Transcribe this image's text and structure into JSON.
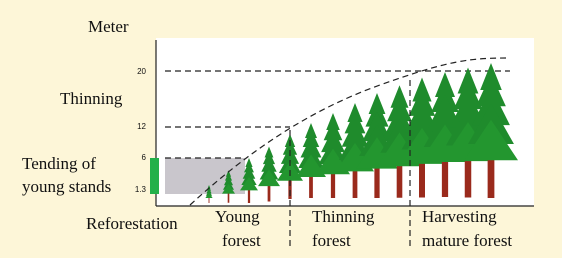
{
  "axis": {
    "title": "Meter",
    "ticks": [
      "20",
      "12",
      "6",
      "1.3"
    ]
  },
  "left_labels": {
    "thinning": "Thinning",
    "tending": [
      "Tending of",
      "young stands"
    ],
    "reforestation": "Reforestation"
  },
  "stages": [
    [
      "Young",
      "forest"
    ],
    [
      "Thinning",
      "forest"
    ],
    [
      "Harvesting",
      "mature forest"
    ]
  ]
}
